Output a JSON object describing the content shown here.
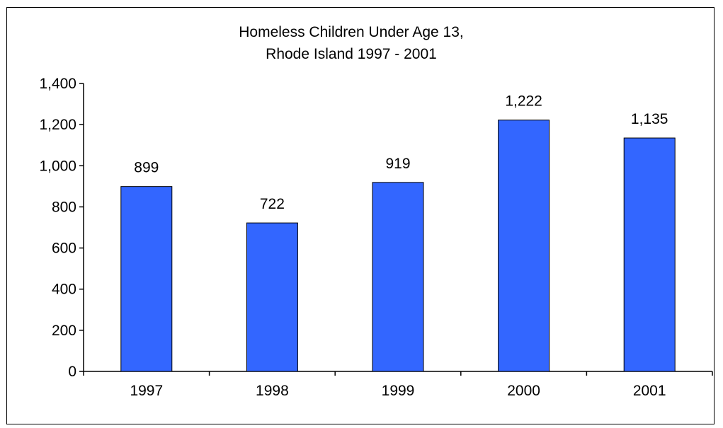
{
  "chart_data": {
    "type": "bar",
    "title_lines": [
      "Homeless Children Under Age 13,",
      "Rhode Island 1997 - 2001"
    ],
    "categories": [
      "1997",
      "1998",
      "1999",
      "2000",
      "2001"
    ],
    "values": [
      899,
      722,
      919,
      1222,
      1135
    ],
    "data_labels": [
      "899",
      "722",
      "919",
      "1,222",
      "1,135"
    ],
    "ylim": [
      0,
      1400
    ],
    "yticks": [
      0,
      200,
      400,
      600,
      800,
      1000,
      1200,
      1400
    ],
    "ytick_labels": [
      "0",
      "200",
      "400",
      "600",
      "800",
      "1,000",
      "1,200",
      "1,400"
    ],
    "xlabel": "",
    "ylabel": "",
    "grid": false,
    "legend": "none",
    "bar_color": "#3366FF",
    "bar_edge_color": "#000000",
    "axis_color": "#000000"
  }
}
